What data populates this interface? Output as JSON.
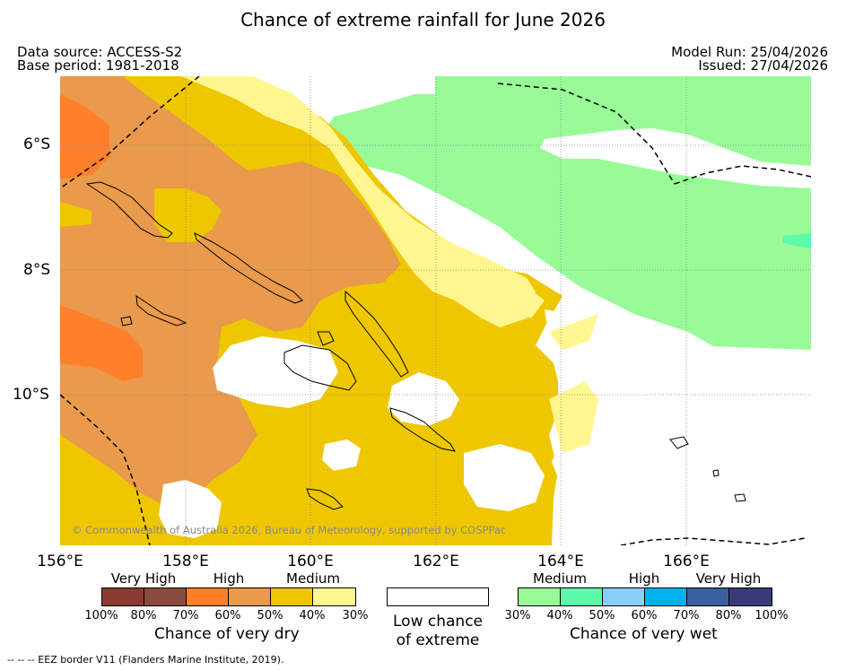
{
  "title": "Chance of extreme rainfall for June 2026",
  "header": {
    "data_source": "Data source: ACCESS-S2",
    "base_period": "Base period: 1981-2018",
    "model_run": "Model Run: 25/04/2026",
    "issued": "Issued: 27/04/2026"
  },
  "map": {
    "latitude_labels": [
      "6°S",
      "8°S",
      "10°S"
    ],
    "longitude_labels": [
      "156°E",
      "158°E",
      "160°E",
      "162°E",
      "164°E",
      "166°E"
    ],
    "copyright": "© Commonwealth of Australia 2026, Bureau of Meteorology, supported by COSPPac"
  },
  "legend": {
    "dry": {
      "categories": [
        "Very High",
        "High",
        "Medium"
      ],
      "ticks": [
        "100%",
        "80%",
        "70%",
        "60%",
        "50%",
        "40%",
        "30%"
      ],
      "colors": [
        "#8b3a32",
        "#8b4a3e",
        "#ff7f2a",
        "#e99a4a",
        "#eec700",
        "#fff68f"
      ],
      "caption": "Chance of very dry"
    },
    "low": {
      "caption_line1": "Low chance",
      "caption_line2": "of extreme",
      "color": "#ffffff"
    },
    "wet": {
      "categories": [
        "Medium",
        "High",
        "Very High"
      ],
      "ticks": [
        "30%",
        "40%",
        "50%",
        "60%",
        "70%",
        "80%",
        "100%"
      ],
      "colors": [
        "#98fb98",
        "#5cfaaa",
        "#87cefa",
        "#00b2ee",
        "#3a5fa0",
        "#3b3a78"
      ],
      "caption": "Chance of very wet"
    }
  },
  "footer": "-- -- -- EEZ border V11 (Flanders Marine Institute, 2019)."
}
